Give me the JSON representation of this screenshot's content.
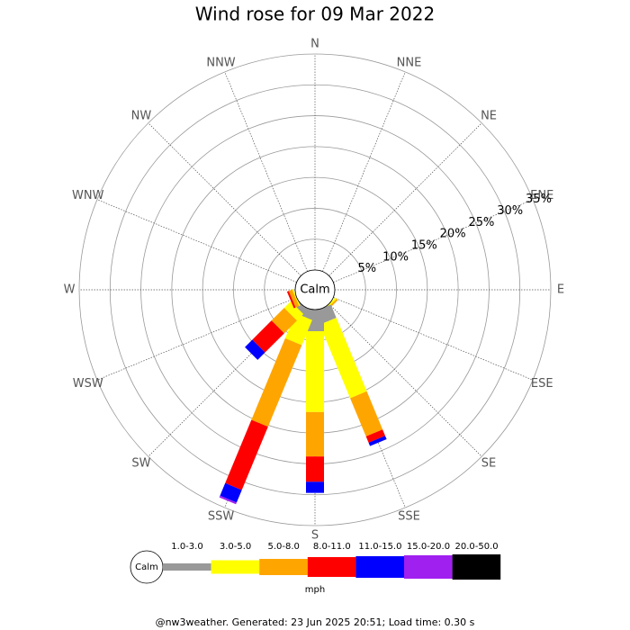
{
  "chart_data": {
    "type": "wind_rose",
    "title": "Wind rose for 09 Mar 2022",
    "directions": [
      "N",
      "NNE",
      "NE",
      "ENE",
      "E",
      "ESE",
      "SE",
      "SSE",
      "S",
      "SSW",
      "SW",
      "WSW",
      "W",
      "WNW",
      "NW",
      "NNW"
    ],
    "series": [
      {
        "name": "1.0-3.0",
        "color": "#999999",
        "values": [
          0,
          0,
          0,
          0,
          0,
          0,
          0,
          2.3,
          3.5,
          1.5,
          0.9,
          0,
          0,
          0,
          0,
          0
        ]
      },
      {
        "name": "3.0-5.0",
        "color": "#ffff00",
        "values": [
          0,
          0,
          0,
          0,
          0,
          0,
          0.3,
          12.9,
          13.1,
          4.4,
          1.5,
          0.2,
          0,
          0,
          0,
          0
        ]
      },
      {
        "name": "5.0-8.0",
        "color": "#ffa500",
        "values": [
          0,
          0,
          0,
          0,
          0,
          0,
          0.3,
          6.7,
          7.2,
          14.3,
          2.9,
          0.6,
          0,
          0,
          0,
          0
        ]
      },
      {
        "name": "8.0-11.0",
        "color": "#ff0000",
        "values": [
          0,
          0,
          0,
          0,
          0,
          0,
          0,
          1.1,
          4.1,
          11.1,
          4.4,
          0.3,
          0,
          0,
          0,
          0
        ]
      },
      {
        "name": "11.0-15.0",
        "color": "#0000ff",
        "values": [
          0,
          0,
          0,
          0,
          0,
          0,
          0,
          0.6,
          1.8,
          2.2,
          1.7,
          0,
          0,
          0,
          0,
          0
        ]
      },
      {
        "name": "15.0-20.0",
        "color": "#a020f0",
        "values": [
          0,
          0,
          0,
          0,
          0,
          0,
          0,
          0,
          0,
          0.3,
          0,
          0,
          0,
          0,
          0,
          0
        ]
      },
      {
        "name": "20.0-50.0",
        "color": "#000000",
        "values": [
          0,
          0,
          0,
          0,
          0,
          0,
          0,
          0,
          0,
          0,
          0,
          0,
          0,
          0,
          0,
          0
        ]
      }
    ],
    "rlim": [
      0,
      35
    ],
    "rticks": [
      {
        "value": 5,
        "label": "5%"
      },
      {
        "value": 10,
        "label": "10%"
      },
      {
        "value": 15,
        "label": "15%"
      },
      {
        "value": 20,
        "label": "20%"
      },
      {
        "value": 25,
        "label": "25%"
      },
      {
        "value": 30,
        "label": "30%"
      },
      {
        "value": 35,
        "label": "35%"
      }
    ],
    "calm_label": "Calm",
    "unit": "mph"
  },
  "footer": "@nw3weather. Generated: 23 Jun 2025 20:51; Load time: 0.30 s"
}
